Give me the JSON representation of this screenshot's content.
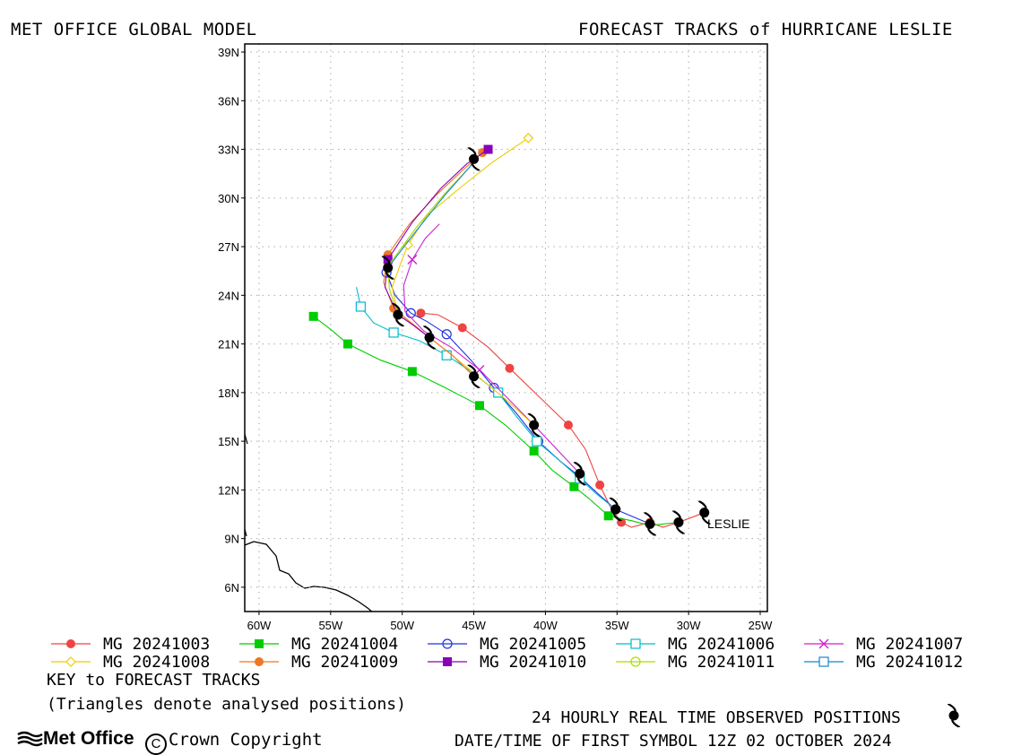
{
  "header": {
    "left_title": "MET OFFICE GLOBAL MODEL",
    "right_title": "FORECAST TRACKS of HURRICANE LESLIE"
  },
  "chart_data": {
    "type": "map",
    "x_ticks": [
      "60W",
      "55W",
      "50W",
      "45W",
      "40W",
      "35W",
      "30W",
      "25W"
    ],
    "y_ticks": [
      "39N",
      "36N",
      "33N",
      "30N",
      "27N",
      "24N",
      "21N",
      "18N",
      "15N",
      "12N",
      "9N",
      "6N"
    ],
    "xlim": [
      -61,
      -24.5
    ],
    "ylim": [
      4.5,
      39.5
    ],
    "grid": true,
    "storm_label": "LESLIE",
    "observed_track": [
      [
        -28.9,
        10.6
      ],
      [
        -30.7,
        10.0
      ],
      [
        -32.7,
        9.9
      ],
      [
        -35.1,
        10.8
      ],
      [
        -37.6,
        13.0
      ],
      [
        -40.8,
        16.0
      ],
      [
        -45.0,
        19.0
      ],
      [
        -48.1,
        21.4
      ],
      [
        -50.3,
        22.8
      ],
      [
        -51.0,
        25.7
      ],
      [
        -45.0,
        32.4
      ]
    ],
    "tracks": [
      {
        "name": "MG 20241003",
        "color": "#ee4444",
        "marker": "dot",
        "points": [
          [
            -28.9,
            10.6
          ],
          [
            -30.7,
            10.0
          ],
          [
            -32.7,
            10.0
          ],
          [
            -34.7,
            10.0
          ],
          [
            -36.2,
            12.3
          ],
          [
            -38.4,
            16.0
          ],
          [
            -42.5,
            19.5
          ],
          [
            -45.8,
            22.0
          ],
          [
            -48.7,
            22.9
          ]
        ],
        "path": [
          [
            -28.9,
            10.6
          ],
          [
            -30.7,
            10.0
          ],
          [
            -31.8,
            9.7
          ],
          [
            -32.7,
            10.0
          ],
          [
            -34.0,
            9.7
          ],
          [
            -34.7,
            10.0
          ],
          [
            -35.5,
            11.0
          ],
          [
            -36.2,
            12.3
          ],
          [
            -37.2,
            14.5
          ],
          [
            -38.4,
            16.0
          ],
          [
            -40.5,
            17.8
          ],
          [
            -42.5,
            19.5
          ],
          [
            -44.0,
            20.8
          ],
          [
            -45.8,
            22.0
          ],
          [
            -47.5,
            22.8
          ],
          [
            -48.7,
            22.9
          ]
        ]
      },
      {
        "name": "MG 20241004",
        "color": "#00cc00",
        "marker": "square",
        "points": [
          [
            -35.6,
            10.4
          ],
          [
            -38.0,
            12.2
          ],
          [
            -40.8,
            14.4
          ],
          [
            -44.6,
            17.2
          ],
          [
            -49.3,
            19.3
          ],
          [
            -53.8,
            21.0
          ],
          [
            -56.2,
            22.7
          ]
        ],
        "path": [
          [
            -30.7,
            10.0
          ],
          [
            -32.7,
            9.8
          ],
          [
            -34.0,
            10.1
          ],
          [
            -35.6,
            10.4
          ],
          [
            -37.0,
            11.5
          ],
          [
            -38.0,
            12.2
          ],
          [
            -39.5,
            13.2
          ],
          [
            -40.8,
            14.4
          ],
          [
            -42.8,
            16.0
          ],
          [
            -44.6,
            17.2
          ],
          [
            -47.0,
            18.3
          ],
          [
            -49.3,
            19.3
          ],
          [
            -51.5,
            20.0
          ],
          [
            -53.8,
            21.0
          ],
          [
            -55.0,
            21.9
          ],
          [
            -56.2,
            22.7
          ]
        ]
      },
      {
        "name": "MG 20241005",
        "color": "#2233dd",
        "marker": "circle",
        "points": [
          [
            -35.1,
            10.8
          ],
          [
            -37.6,
            12.8
          ],
          [
            -40.5,
            15.0
          ],
          [
            -43.6,
            18.3
          ],
          [
            -46.9,
            21.6
          ],
          [
            -49.4,
            22.9
          ],
          [
            -51.1,
            25.4
          ]
        ],
        "path": [
          [
            -32.7,
            9.9
          ],
          [
            -35.1,
            10.8
          ],
          [
            -36.5,
            11.9
          ],
          [
            -37.6,
            12.8
          ],
          [
            -39.0,
            13.8
          ],
          [
            -40.5,
            15.0
          ],
          [
            -42.0,
            16.7
          ],
          [
            -43.6,
            18.3
          ],
          [
            -45.2,
            20.0
          ],
          [
            -46.9,
            21.6
          ],
          [
            -48.3,
            22.4
          ],
          [
            -49.4,
            22.9
          ],
          [
            -50.5,
            24.0
          ],
          [
            -51.1,
            25.4
          ]
        ]
      },
      {
        "name": "MG 20241006",
        "color": "#00bbcc",
        "marker": "square-open",
        "points": [
          [
            -37.6,
            12.7
          ],
          [
            -40.6,
            15.0
          ],
          [
            -43.3,
            18.0
          ],
          [
            -46.9,
            20.3
          ],
          [
            -50.6,
            21.7
          ],
          [
            -52.9,
            23.3
          ]
        ],
        "path": [
          [
            -35.1,
            10.8
          ],
          [
            -36.5,
            11.8
          ],
          [
            -37.6,
            12.7
          ],
          [
            -39.0,
            13.8
          ],
          [
            -40.6,
            15.0
          ],
          [
            -42.0,
            16.5
          ],
          [
            -43.3,
            18.0
          ],
          [
            -45.2,
            19.3
          ],
          [
            -46.9,
            20.3
          ],
          [
            -48.8,
            21.2
          ],
          [
            -50.6,
            21.7
          ],
          [
            -52.0,
            22.3
          ],
          [
            -52.9,
            23.3
          ],
          [
            -53.2,
            24.5
          ]
        ]
      },
      {
        "name": "MG 20241007",
        "color": "#cc22cc",
        "marker": "cross",
        "points": [
          [
            -44.6,
            19.4
          ],
          [
            -49.3,
            26.2
          ]
        ],
        "path": [
          [
            -37.6,
            13.0
          ],
          [
            -39.2,
            14.5
          ],
          [
            -40.8,
            16.0
          ],
          [
            -42.8,
            17.8
          ],
          [
            -44.6,
            19.4
          ],
          [
            -46.6,
            20.8
          ],
          [
            -48.5,
            21.8
          ],
          [
            -49.8,
            23.0
          ],
          [
            -49.9,
            24.6
          ],
          [
            -49.3,
            26.2
          ],
          [
            -48.4,
            27.5
          ],
          [
            -47.4,
            28.4
          ]
        ]
      },
      {
        "name": "MG 20241008",
        "color": "#eecc00",
        "marker": "diamond",
        "points": [
          [
            -49.6,
            27.1
          ],
          [
            -41.2,
            33.7
          ]
        ],
        "path": [
          [
            -40.8,
            16.0
          ],
          [
            -42.8,
            17.6
          ],
          [
            -45.0,
            19.2
          ],
          [
            -46.8,
            20.5
          ],
          [
            -48.1,
            21.4
          ],
          [
            -49.2,
            22.2
          ],
          [
            -50.3,
            22.8
          ],
          [
            -50.7,
            24.5
          ],
          [
            -50.1,
            26.0
          ],
          [
            -49.6,
            27.1
          ],
          [
            -48.3,
            28.9
          ],
          [
            -46.0,
            30.6
          ],
          [
            -43.7,
            32.2
          ],
          [
            -41.2,
            33.7
          ]
        ]
      },
      {
        "name": "MG 20241009",
        "color": "#ee7722",
        "marker": "dot",
        "points": [
          [
            -50.6,
            23.2
          ],
          [
            -51.0,
            26.5
          ],
          [
            -44.4,
            32.8
          ]
        ],
        "path": [
          [
            -45.0,
            19.0
          ],
          [
            -46.5,
            20.3
          ],
          [
            -48.1,
            21.4
          ],
          [
            -49.5,
            22.4
          ],
          [
            -50.6,
            23.2
          ],
          [
            -51.3,
            24.8
          ],
          [
            -51.0,
            26.5
          ],
          [
            -49.5,
            28.4
          ],
          [
            -47.6,
            30.2
          ],
          [
            -45.8,
            31.7
          ],
          [
            -44.4,
            32.8
          ]
        ]
      },
      {
        "name": "MG 20241010",
        "color": "#8800bb",
        "marker": "square",
        "points": [
          [
            -51.0,
            26.2
          ],
          [
            -44.0,
            33.0
          ]
        ],
        "path": [
          [
            -48.1,
            21.4
          ],
          [
            -49.3,
            22.2
          ],
          [
            -50.3,
            22.8
          ],
          [
            -51.2,
            24.5
          ],
          [
            -51.0,
            26.2
          ],
          [
            -49.3,
            28.5
          ],
          [
            -47.3,
            30.6
          ],
          [
            -45.5,
            32.1
          ],
          [
            -44.0,
            33.0
          ]
        ]
      },
      {
        "name": "MG 20241011",
        "color": "#aadd00",
        "marker": "circle",
        "points": [],
        "path": [
          [
            -50.3,
            22.8
          ],
          [
            -50.9,
            24.4
          ],
          [
            -51.0,
            25.8
          ],
          [
            -49.0,
            28.2
          ],
          [
            -47.0,
            30.3
          ],
          [
            -45.3,
            31.9
          ],
          [
            -45.0,
            32.4
          ]
        ]
      },
      {
        "name": "MG 20241012",
        "color": "#1188cc",
        "marker": "square-open",
        "points": [],
        "path": [
          [
            -51.0,
            25.7
          ],
          [
            -49.0,
            28.0
          ],
          [
            -47.0,
            30.2
          ],
          [
            -45.2,
            32.0
          ],
          [
            -45.0,
            32.4
          ]
        ]
      }
    ]
  },
  "footer": {
    "key_title": "KEY to FORECAST TRACKS",
    "triangle_note": "(Triangles denote analysed positions)",
    "observed_note": "24 HOURLY REAL TIME OBSERVED POSITIONS",
    "datetime_note": "DATE/TIME OF FIRST SYMBOL 12Z 02 OCTOBER 2024",
    "brand": "Met Office",
    "copyright": "Crown Copyright"
  }
}
